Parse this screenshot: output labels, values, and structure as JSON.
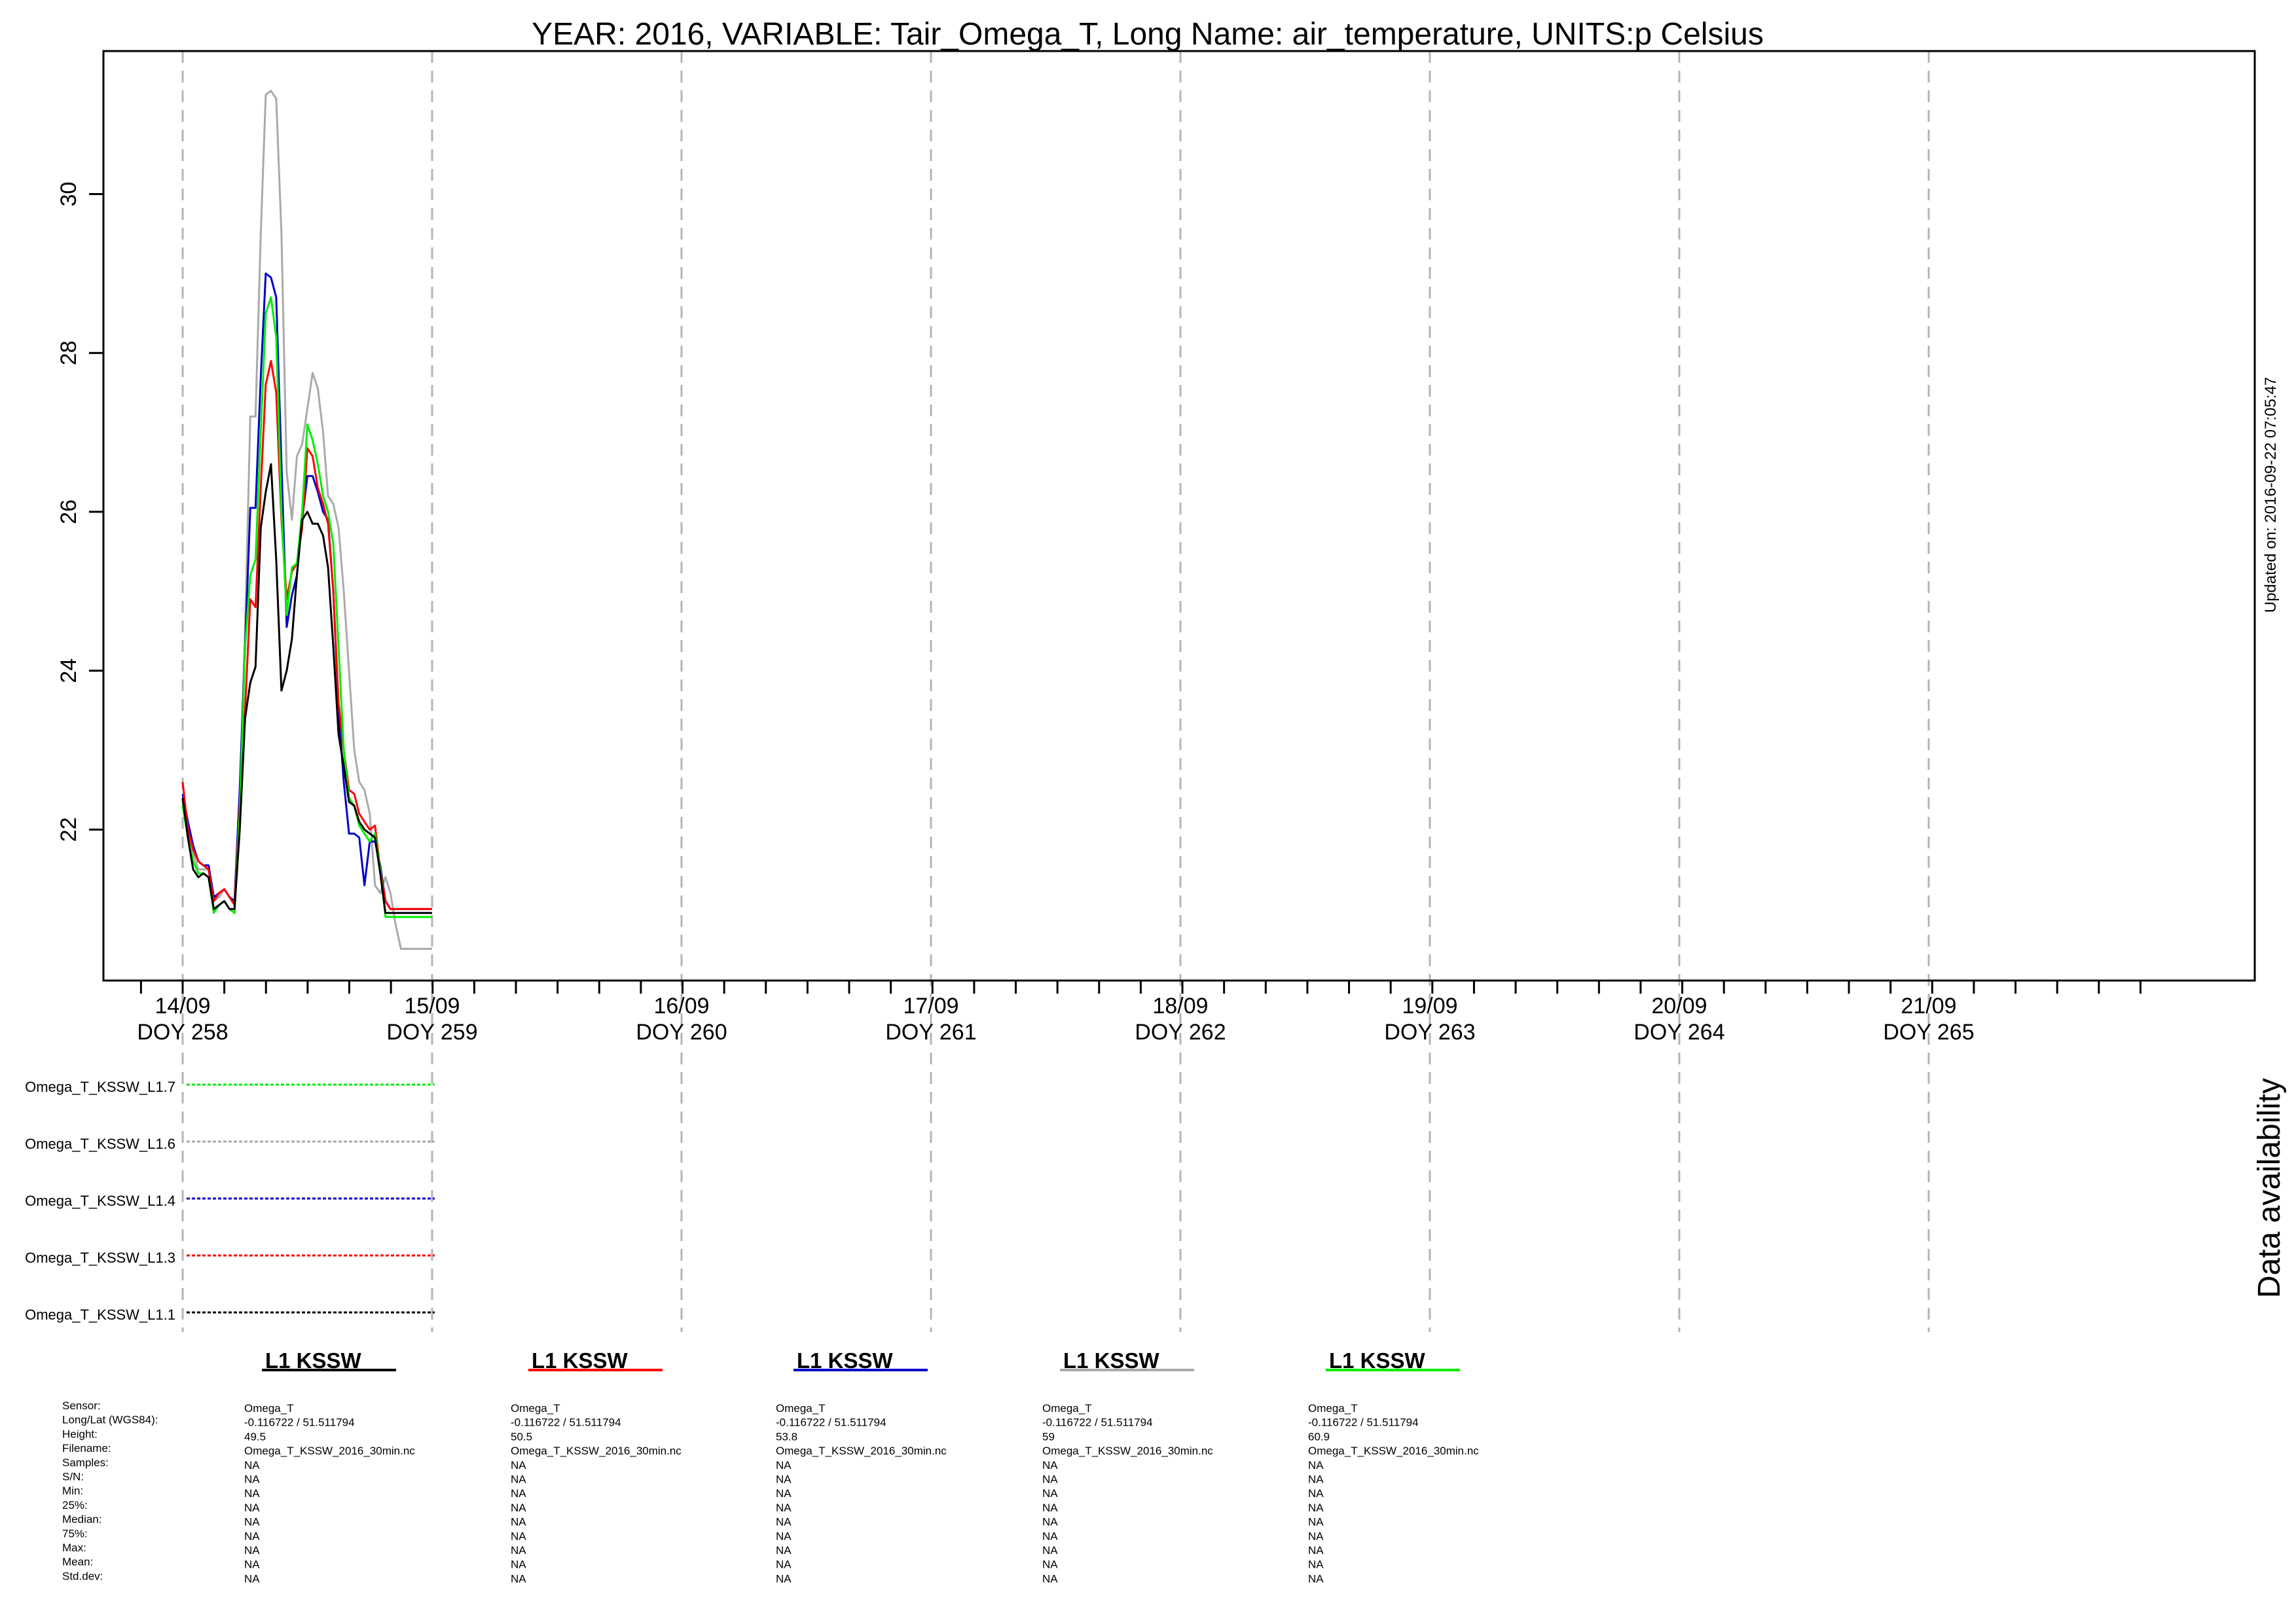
{
  "page_title": "YEAR: 2016, VARIABLE: Tair_Omega_T, Long Name: air_temperature, UNITS:p Celsius",
  "updated_on": "Updated on: 2016-09-22 07:05:47",
  "availability_title": "Data availability",
  "colors": {
    "L1.1": "#000000",
    "L1.3": "#ff0000",
    "L1.4": "#0000cc",
    "L1.6": "#aaaaaa",
    "L1.7": "#00ee00",
    "grid": "#b4b4b4"
  },
  "chart_data": {
    "type": "line",
    "title": "YEAR: 2016, VARIABLE: Tair_Omega_T, Long Name: air_temperature, UNITS:p Celsius",
    "xlabel": "",
    "ylabel": "",
    "x_unit": "DOY",
    "xlim": [
      257.68,
      266.3
    ],
    "ylim": [
      20.1,
      31.8
    ],
    "y_ticks": [
      22,
      24,
      26,
      28,
      30
    ],
    "x_major_ticks": [
      {
        "doy": 258,
        "date": "14/09",
        "label": "DOY 258"
      },
      {
        "doy": 259,
        "date": "15/09",
        "label": "DOY 259"
      },
      {
        "doy": 260,
        "date": "16/09",
        "label": "DOY 260"
      },
      {
        "doy": 261,
        "date": "17/09",
        "label": "DOY 261"
      },
      {
        "doy": 262,
        "date": "18/09",
        "label": "DOY 262"
      },
      {
        "doy": 263,
        "date": "19/09",
        "label": "DOY 263"
      },
      {
        "doy": 264,
        "date": "20/09",
        "label": "DOY 264"
      },
      {
        "doy": 265,
        "date": "21/09",
        "label": "DOY 265"
      }
    ],
    "x_minor_step": 0.167,
    "grid": "vertical dashed at each DOY",
    "x": [
      258.0,
      258.021,
      258.042,
      258.063,
      258.083,
      258.104,
      258.125,
      258.146,
      258.167,
      258.188,
      258.208,
      258.229,
      258.25,
      258.271,
      258.292,
      258.313,
      258.333,
      258.354,
      258.375,
      258.396,
      258.417,
      258.438,
      258.458,
      258.479,
      258.5,
      258.521,
      258.542,
      258.563,
      258.583,
      258.604,
      258.625,
      258.646,
      258.667,
      258.688,
      258.708,
      258.729,
      258.75,
      258.771,
      258.792,
      258.813,
      258.833,
      258.854,
      258.875,
      258.896,
      258.917,
      258.938,
      258.958,
      258.979,
      259.0
    ],
    "series": [
      {
        "name": "Omega_T_KSSW_L1.6",
        "key": "L1.6",
        "values": [
          22.4,
          22.0,
          21.7,
          21.5,
          21.5,
          21.5,
          21.1,
          21.15,
          21.25,
          21.15,
          21.1,
          22.5,
          24.5,
          27.2,
          27.2,
          29.5,
          31.25,
          31.3,
          31.2,
          29.5,
          26.5,
          25.9,
          26.7,
          26.85,
          27.3,
          27.75,
          27.55,
          27.0,
          26.2,
          26.1,
          25.8,
          25.0,
          24.0,
          23.0,
          22.6,
          22.5,
          22.2,
          21.3,
          21.2,
          21.4,
          21.2,
          20.8,
          20.5,
          20.5,
          20.5,
          20.5,
          20.5,
          20.5,
          20.5
        ]
      },
      {
        "name": "Omega_T_KSSW_L1.4",
        "key": "L1.4",
        "values": [
          22.45,
          22.1,
          21.8,
          21.6,
          21.55,
          21.55,
          21.15,
          21.2,
          21.25,
          21.15,
          21.1,
          22.5,
          24.3,
          26.05,
          26.05,
          27.7,
          29.0,
          28.95,
          28.7,
          26.6,
          24.55,
          24.95,
          25.2,
          25.9,
          26.45,
          26.45,
          26.25,
          26.0,
          25.9,
          25.0,
          23.5,
          22.6,
          21.95,
          21.95,
          21.9,
          21.3,
          21.85,
          21.85,
          21.55,
          21.1,
          21.0,
          21.0,
          21.0,
          21.0,
          21.0,
          21.0,
          21.0,
          21.0,
          21.0
        ]
      },
      {
        "name": "Omega_T_KSSW_L1.3",
        "key": "L1.3",
        "values": [
          22.6,
          22.0,
          21.75,
          21.6,
          21.55,
          21.5,
          21.1,
          21.2,
          21.25,
          21.15,
          21.05,
          22.3,
          23.5,
          24.9,
          24.8,
          26.3,
          27.6,
          27.9,
          27.5,
          25.9,
          24.9,
          25.25,
          25.35,
          25.8,
          26.8,
          26.7,
          26.3,
          26.1,
          25.85,
          25.0,
          23.6,
          23.0,
          22.5,
          22.45,
          22.2,
          22.1,
          22.0,
          22.05,
          21.5,
          21.1,
          21.0,
          21.0,
          21.0,
          21.0,
          21.0,
          21.0,
          21.0,
          21.0,
          21.0
        ]
      },
      {
        "name": "Omega_T_KSSW_L1.7",
        "key": "L1.7",
        "values": [
          22.3,
          21.9,
          21.6,
          21.45,
          21.45,
          21.4,
          20.95,
          21.05,
          21.1,
          21.0,
          20.95,
          22.2,
          24.3,
          25.2,
          25.4,
          27.0,
          28.5,
          28.7,
          28.2,
          26.0,
          24.7,
          25.3,
          25.35,
          26.0,
          27.1,
          26.9,
          26.6,
          26.2,
          26.0,
          25.6,
          24.3,
          23.0,
          22.4,
          22.3,
          22.05,
          21.95,
          21.85,
          21.95,
          21.5,
          20.9,
          20.9,
          20.9,
          20.9,
          20.9,
          20.9,
          20.9,
          20.9,
          20.9,
          20.9
        ]
      },
      {
        "name": "Omega_T_KSSW_L1.1",
        "key": "L1.1",
        "values": [
          22.4,
          21.9,
          21.5,
          21.4,
          21.45,
          21.4,
          21.0,
          21.05,
          21.1,
          21.0,
          21.0,
          22.0,
          23.4,
          23.85,
          24.05,
          25.8,
          26.25,
          26.6,
          25.4,
          23.75,
          24.0,
          24.4,
          25.2,
          25.9,
          26.0,
          25.85,
          25.85,
          25.7,
          25.3,
          24.3,
          23.2,
          22.8,
          22.35,
          22.3,
          22.1,
          22.0,
          21.95,
          21.9,
          21.45,
          20.95,
          20.95,
          20.95,
          20.95,
          20.95,
          20.95,
          20.95,
          20.95,
          20.95,
          20.95
        ]
      }
    ]
  },
  "availability": {
    "rows": [
      {
        "label": "Omega_T_KSSW_L1.7",
        "key": "L1.7",
        "from_doy": 258,
        "to_doy": 259
      },
      {
        "label": "Omega_T_KSSW_L1.6",
        "key": "L1.6",
        "from_doy": 258,
        "to_doy": 259
      },
      {
        "label": "Omega_T_KSSW_L1.4",
        "key": "L1.4",
        "from_doy": 258,
        "to_doy": 259
      },
      {
        "label": "Omega_T_KSSW_L1.3",
        "key": "L1.3",
        "from_doy": 258,
        "to_doy": 259
      },
      {
        "label": "Omega_T_KSSW_L1.1",
        "key": "L1.1",
        "from_doy": 258,
        "to_doy": 259
      }
    ]
  },
  "stats_labels": [
    "Sensor:",
    "Long/Lat (WGS84):",
    "Height:",
    "Filename:",
    "Samples:",
    "S/N:",
    "Min:",
    "25%:",
    "Median:",
    "75%:",
    "Max:",
    "Mean:",
    "Std.dev:"
  ],
  "stations": [
    {
      "title": "L1 KSSW",
      "key": "L1.1",
      "values": [
        "Omega_T",
        " -0.116722 / 51.511794",
        "49.5",
        "Omega_T_KSSW_2016_30min.nc",
        "NA",
        "NA",
        "NA",
        "NA",
        "NA",
        "NA",
        "NA",
        "NA",
        "NA"
      ]
    },
    {
      "title": "L1 KSSW",
      "key": "L1.3",
      "values": [
        "Omega_T",
        " -0.116722 / 51.511794",
        "50.5",
        "Omega_T_KSSW_2016_30min.nc",
        "NA",
        "NA",
        "NA",
        "NA",
        "NA",
        "NA",
        "NA",
        "NA",
        "NA"
      ]
    },
    {
      "title": "L1 KSSW",
      "key": "L1.4",
      "values": [
        "Omega_T",
        " -0.116722 / 51.511794",
        "53.8",
        "Omega_T_KSSW_2016_30min.nc",
        "NA",
        "NA",
        "NA",
        "NA",
        "NA",
        "NA",
        "NA",
        "NA",
        "NA"
      ]
    },
    {
      "title": "L1 KSSW",
      "key": "L1.6",
      "values": [
        "Omega_T",
        " -0.116722 / 51.511794",
        "59",
        "Omega_T_KSSW_2016_30min.nc",
        "NA",
        "NA",
        "NA",
        "NA",
        "NA",
        "NA",
        "NA",
        "NA",
        "NA"
      ]
    },
    {
      "title": "L1 KSSW",
      "key": "L1.7",
      "values": [
        "Omega_T",
        " -0.116722 / 51.511794",
        "60.9",
        "Omega_T_KSSW_2016_30min.nc",
        "NA",
        "NA",
        "NA",
        "NA",
        "NA",
        "NA",
        "NA",
        "NA",
        "NA"
      ]
    }
  ]
}
